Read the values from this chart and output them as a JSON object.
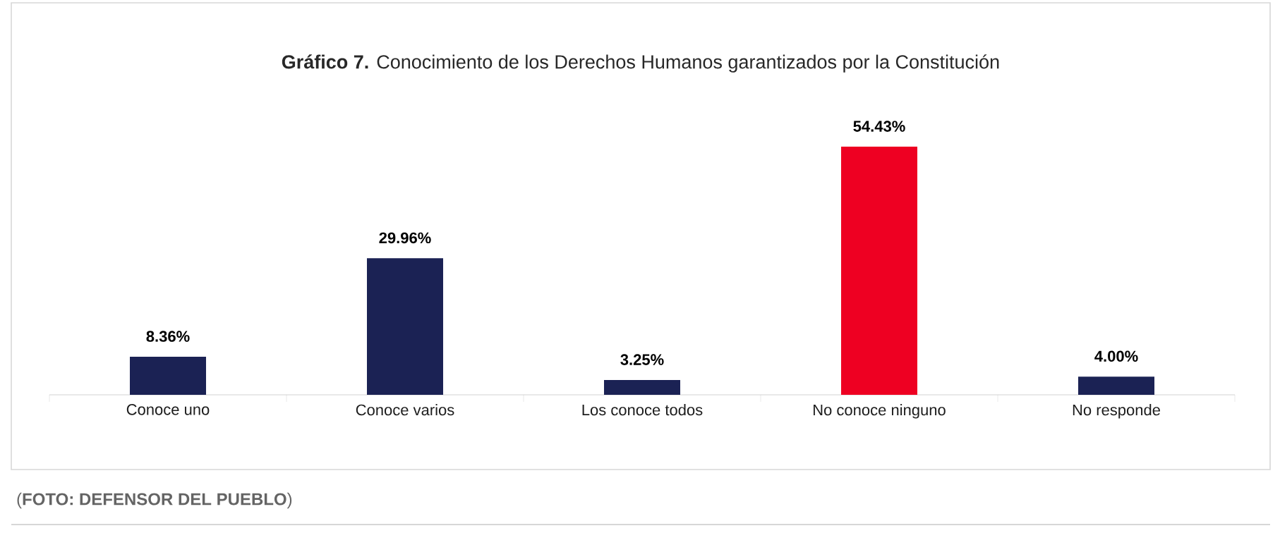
{
  "chart_data": {
    "type": "bar",
    "title": "**Gráfico 7.** Conocimiento de los Derechos Humanos garantizados por la Constitución",
    "categories": [
      "Conoce uno",
      "Conoce varios",
      "Los conoce todos",
      "No conoce ninguno",
      "No responde"
    ],
    "values": [
      8.36,
      29.96,
      3.25,
      54.43,
      4.0
    ],
    "colors": [
      "#1b2254",
      "#1b2254",
      "#1b2254",
      "#ee0022",
      "#1b2254"
    ],
    "value_labels": [
      "8.36%",
      "29.96%",
      "3.25%",
      "54.43%",
      "4.00%"
    ],
    "annotations": [
      "(**FOTO: DEFENSOR DEL PUEBLO**)"
    ]
  }
}
